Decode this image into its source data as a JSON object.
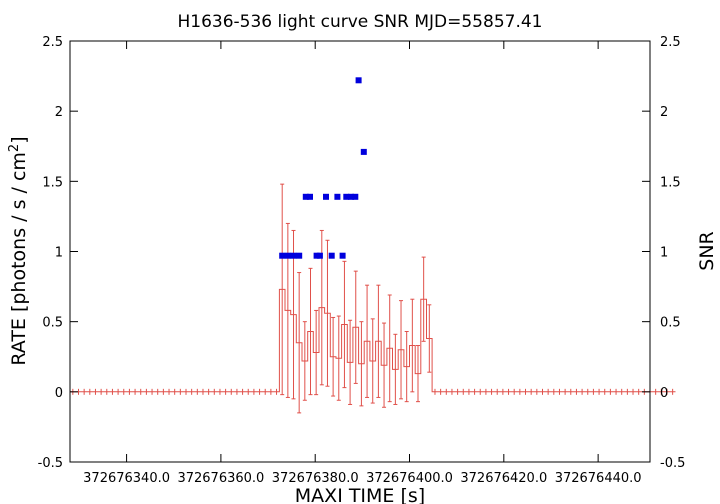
{
  "chart_data": {
    "type": "scatter",
    "title": "H1636-536 light curve  SNR MJD=55857.41",
    "xlabel": "MAXI TIME [s]",
    "ylabel_left": "RATE [photons / s / cm",
    "ylabel_left_sup": "2",
    "ylabel_left_end": "]",
    "ylabel_right": "SNR",
    "xlim": [
      372676328,
      372676451
    ],
    "ylim_left": [
      -0.5,
      2.5
    ],
    "ylim_right": [
      -0.5,
      2.5
    ],
    "grid": false,
    "x_ticks": [
      372676340,
      372676360,
      372676380,
      372676400,
      372676420,
      372676440
    ],
    "x_tick_labels": [
      "372676340.0",
      "372676360.0",
      "372676380.0",
      "372676400.0",
      "372676420.0",
      "372676440.0"
    ],
    "y_ticks": [
      -0.5,
      0,
      0.5,
      1,
      1.5,
      2,
      2.5
    ],
    "y_tick_labels": [
      "-0.5",
      "0",
      "0.5",
      "1",
      "1.5",
      "2",
      "2.5"
    ],
    "colors": {
      "rate": "#e0504a",
      "snr": "#0000dd"
    },
    "rate": {
      "x_start": 372676328.6,
      "x_step": 1.2,
      "y": [
        0,
        0,
        0,
        0,
        0,
        0,
        0,
        0,
        0,
        0,
        0,
        0,
        0,
        0,
        0,
        0,
        0,
        0,
        0,
        0,
        0,
        0,
        0,
        0,
        0,
        0,
        0,
        0,
        0,
        0,
        0,
        0,
        0,
        0,
        0,
        0,
        0,
        0.73,
        0.58,
        0.55,
        0.35,
        0.22,
        0.43,
        0.28,
        0.6,
        0.56,
        0.25,
        0.24,
        0.48,
        0.21,
        0.46,
        0.2,
        0.36,
        0.22,
        0.36,
        0.19,
        0.31,
        0.16,
        0.3,
        0.18,
        0.33,
        0.13,
        0.66,
        0.38,
        0,
        0,
        0,
        0,
        0,
        0,
        0,
        0,
        0,
        0,
        0,
        0,
        0,
        0,
        0,
        0,
        0,
        0,
        0,
        0,
        0,
        0,
        0,
        0,
        0,
        0,
        0,
        0,
        0,
        0,
        0,
        0,
        0,
        0,
        0,
        0,
        0,
        0,
        0,
        0,
        0,
        0,
        0
      ],
      "err": [
        0,
        0,
        0,
        0,
        0,
        0,
        0,
        0,
        0,
        0,
        0,
        0,
        0,
        0,
        0,
        0,
        0,
        0,
        0,
        0,
        0,
        0,
        0,
        0,
        0,
        0,
        0,
        0,
        0,
        0,
        0,
        0,
        0,
        0,
        0,
        0,
        0,
        0.75,
        0.62,
        0.6,
        0.5,
        0.28,
        0.45,
        0.3,
        0.55,
        0.52,
        0.28,
        0.3,
        0.45,
        0.3,
        0.4,
        0.3,
        0.4,
        0.3,
        0.4,
        0.3,
        0.38,
        0.25,
        0.35,
        0.25,
        0.33,
        0.2,
        0.3,
        0.24,
        0,
        0,
        0,
        0,
        0,
        0,
        0,
        0,
        0,
        0,
        0,
        0,
        0,
        0,
        0,
        0,
        0,
        0,
        0,
        0,
        0,
        0,
        0,
        0,
        0,
        0,
        0,
        0,
        0,
        0,
        0,
        0,
        0,
        0,
        0,
        0,
        0,
        0,
        0,
        0,
        0,
        0,
        0
      ]
    },
    "snr": {
      "x": [
        372676373.0,
        372676374.2,
        372676375.4,
        372676376.6,
        372676378.0,
        372676378.9,
        372676380.3,
        372676381.0,
        372676382.3,
        372676383.5,
        372676384.7,
        372676385.8,
        372676386.6,
        372676387.6,
        372676388.5,
        372676389.2,
        372676390.3
      ],
      "y": [
        0.97,
        0.97,
        0.97,
        0.97,
        1.39,
        1.39,
        0.97,
        0.97,
        1.39,
        0.97,
        1.39,
        0.97,
        1.39,
        1.39,
        1.39,
        2.22,
        1.71
      ]
    }
  }
}
